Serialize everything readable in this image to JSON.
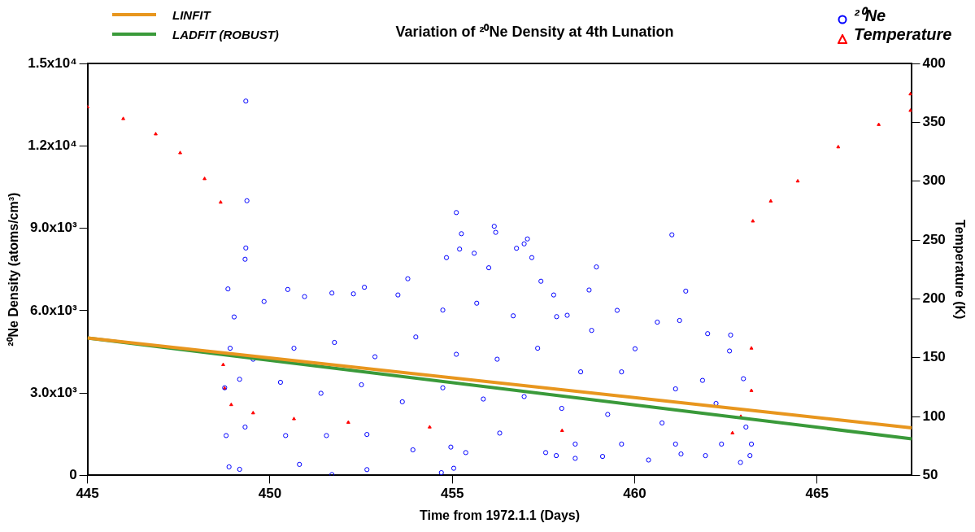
{
  "chart_data": {
    "type": "scatter",
    "title": "Variation of ²⁰Ne Density at 4th Lunation",
    "xlabel": "Time from 1972.1.1 (Days)",
    "ylabel": "²⁰Ne Density (atoms/cm³)",
    "y2label": "Temperature (K)",
    "xlim": [
      445,
      467.6
    ],
    "xticks": [
      445,
      450,
      455,
      460,
      465
    ],
    "ylim": [
      0,
      15000
    ],
    "yticks": [
      0,
      {
        "value": 3000,
        "label": "3.0x10³"
      },
      {
        "value": 6000,
        "label": "6.0x10³"
      },
      {
        "value": 9000,
        "label": "9.0x10³"
      },
      {
        "value": 12000,
        "label": "1.2x10⁴"
      },
      {
        "value": 15000,
        "label": "1.5x10⁴"
      }
    ],
    "y2lim": [
      50,
      400
    ],
    "y2ticks": [
      50,
      100,
      150,
      200,
      250,
      300,
      350,
      400
    ],
    "grid": false,
    "legend": "top",
    "series": [
      {
        "name": "LINFIT",
        "type": "line",
        "color": "#e8961e",
        "marker": "none",
        "x": [
          445,
          467.6
        ],
        "values": [
          5000,
          1730
        ]
      },
      {
        "name": "LADFIT (ROBUST)",
        "type": "line",
        "color": "#3a9a3a",
        "marker": "none",
        "x": [
          445,
          467.6
        ],
        "values": [
          5000,
          1330
        ]
      },
      {
        "name": "²⁰Ne",
        "type": "scatter",
        "color": "#0000ff",
        "marker": "circle",
        "x": [
          449.34,
          449.37,
          449.34,
          449.32,
          448.85,
          450.49,
          451.7,
          452.59,
          453.78,
          455.11,
          455.25,
          455.2,
          454.84,
          456.15,
          456.19,
          456.97,
          457.06,
          456.76,
          457.18,
          455.6,
          456.0,
          457.43,
          449.02,
          449.84,
          450.95,
          452.29,
          453.51,
          454.74,
          455.67,
          456.67,
          457.86,
          449.54,
          450.66,
          451.77,
          452.88,
          454.0,
          455.11,
          456.23,
          457.34,
          449.17,
          450.29,
          451.4,
          452.51,
          453.63,
          454.74,
          455.85,
          456.97,
          449.32,
          450.43,
          451.55,
          452.66,
          453.92,
          454.96,
          456.3,
          457.56,
          448.88,
          449.17,
          451.7,
          452.66,
          454.7,
          455.04,
          450.81,
          455.37,
          448.8,
          448.76,
          448.91,
          461.02,
          458.95,
          458.75,
          461.4,
          457.78,
          459.52,
          460.62,
          461.23,
          462.0,
          462.63,
          458.15,
          458.82,
          460.01,
          462.6,
          462.98,
          458.52,
          459.64,
          461.12,
          461.86,
          458.0,
          459.26,
          460.75,
          462.23,
          463.05,
          458.37,
          459.64,
          461.12,
          462.38,
          463.2,
          457.85,
          459.12,
          460.38,
          461.94,
          462.9,
          463.16,
          458.37,
          461.27
        ],
        "values": [
          13630,
          10000,
          8280,
          7870,
          6790,
          6770,
          6640,
          6850,
          7160,
          9570,
          8800,
          8240,
          7930,
          9070,
          8850,
          8430,
          8610,
          8270,
          7930,
          8090,
          7560,
          7070,
          5770,
          6330,
          6510,
          6610,
          6570,
          6020,
          6270,
          5810,
          5780,
          4230,
          4630,
          4840,
          4320,
          5040,
          4410,
          4230,
          4630,
          3500,
          3390,
          2990,
          3300,
          2680,
          3190,
          2780,
          2870,
          1760,
          1450,
          1450,
          1490,
          930,
          1030,
          1540,
          830,
          310,
          220,
          30,
          210,
          100,
          260,
          400,
          830,
          1450,
          3190,
          4630,
          8760,
          7590,
          6750,
          6710,
          6570,
          6010,
          5580,
          5640,
          5160,
          5110,
          5830,
          5280,
          4610,
          4530,
          3520,
          3770,
          3770,
          3150,
          3460,
          2440,
          2220,
          1910,
          2620,
          1760,
          1140,
          1140,
          1140,
          1140,
          1140,
          720,
          690,
          560,
          720,
          470,
          720,
          620,
          780
        ]
      },
      {
        "name": "Temperature",
        "type": "scatter",
        "axis": "y2",
        "color": "#ff0000",
        "marker": "triangle",
        "x": [
          445,
          445.98,
          446.87,
          447.54,
          448.21,
          448.65,
          448.72,
          448.76,
          448.94,
          449.54,
          450.66,
          452.15,
          454.38,
          458.01,
          462.68,
          462.91,
          463.2,
          463.2,
          463.24,
          463.73,
          464.47,
          465.58,
          466.69,
          467.56,
          467.56
        ],
        "values": [
          363,
          353,
          340,
          324,
          302,
          282,
          144,
          124,
          110,
          103,
          98,
          95,
          91,
          88,
          86,
          100,
          122,
          158,
          266,
          283,
          300,
          329,
          348,
          360,
          374
        ]
      }
    ]
  }
}
